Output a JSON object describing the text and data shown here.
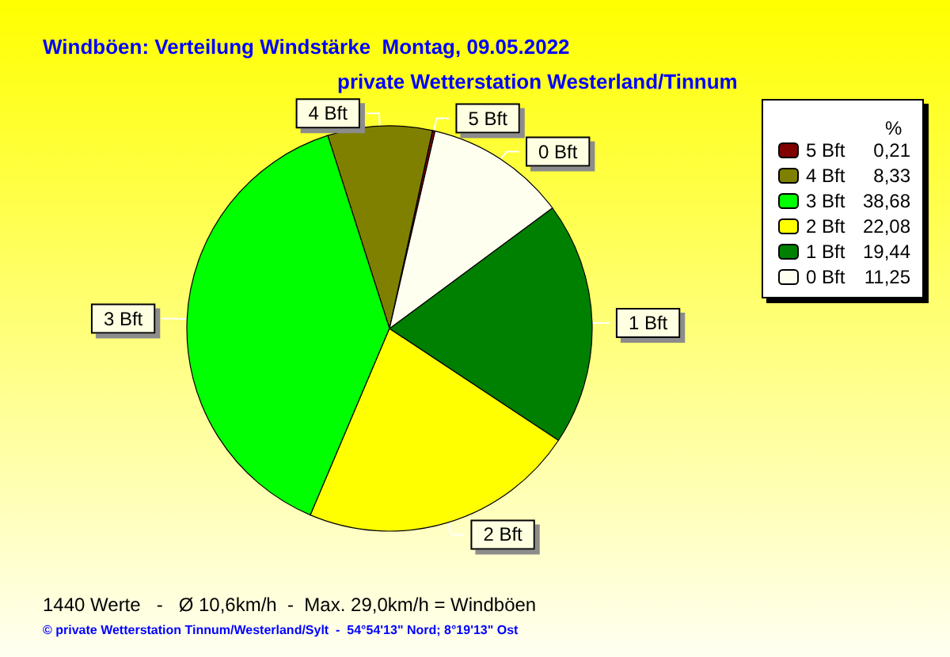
{
  "chart_data": {
    "type": "pie",
    "title": "Windböen: Verteilung Windstärke  Montag, 09.05.2022",
    "subtitle": "private Wetterstation Westerland/Tinnum",
    "categories": [
      "5 Bft",
      "4 Bft",
      "3 Bft",
      "2 Bft",
      "1 Bft",
      "0 Bft"
    ],
    "values": [
      0.21,
      8.33,
      38.68,
      22.08,
      19.44,
      11.25
    ],
    "value_labels": [
      "0,21",
      "8,33",
      "38,68",
      "22,08",
      "19,44",
      "11,25"
    ],
    "colors": [
      "#800000",
      "#808000",
      "#00ff00",
      "#ffff00",
      "#008000",
      "#fffff0"
    ],
    "legend": "top right",
    "legend_title": "%",
    "annotations": [
      "1440 Werte   -   Ø 10,6km/h  -  Max. 29,0km/h = Windböen",
      "© private Wetterstation Tinnum/Westerland/Sylt  -  54°54'13\" Nord; 8°19'13\" Ost"
    ]
  }
}
